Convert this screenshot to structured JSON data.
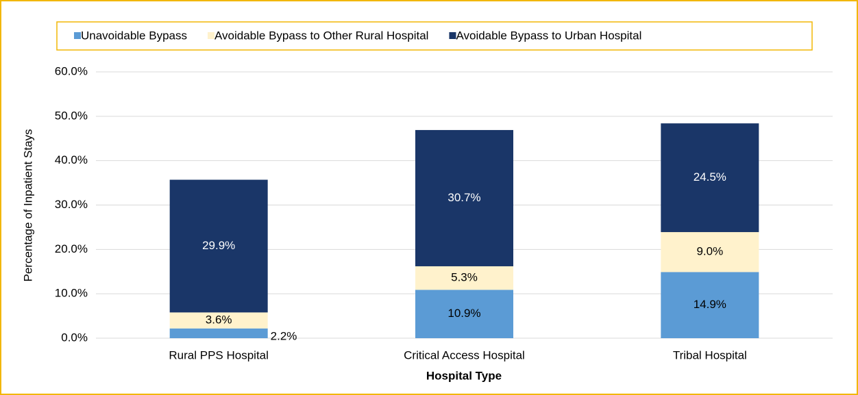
{
  "chart_data": {
    "type": "stacked_bar",
    "x_label": "Hospital Type",
    "y_label": "Percentage of Inpatient Stays",
    "categories": [
      "Rural PPS Hospital",
      "Critical Access Hospital",
      "Tribal Hospital"
    ],
    "series": [
      {
        "name": "Unavoidable Bypass",
        "color": "#5b9bd5",
        "values": [
          2.2,
          10.9,
          14.9
        ],
        "value_labels": [
          "2.2%",
          "10.9%",
          "14.9%"
        ]
      },
      {
        "name": "Avoidable Bypass to Other Rural Hospital",
        "color": "#fff2cc",
        "values": [
          3.6,
          5.3,
          9.0
        ],
        "value_labels": [
          "3.6%",
          "5.3%",
          "9.0%"
        ]
      },
      {
        "name": "Avoidable Bypass to Urban Hospital",
        "color": "#1a3668",
        "values": [
          29.9,
          30.7,
          24.5
        ],
        "value_labels": [
          "29.9%",
          "30.7%",
          "24.5%"
        ]
      }
    ],
    "ylim": [
      0,
      60
    ],
    "yticks": [
      {
        "value": 0,
        "label": "0.0%"
      },
      {
        "value": 10,
        "label": "10.0%"
      },
      {
        "value": 20,
        "label": "20.0%"
      },
      {
        "value": 30,
        "label": "30.0%"
      },
      {
        "value": 40,
        "label": "40.0%"
      },
      {
        "value": 50,
        "label": "50.0%"
      },
      {
        "value": 60,
        "label": "60.0%"
      }
    ],
    "grid": true,
    "legend": "top"
  }
}
